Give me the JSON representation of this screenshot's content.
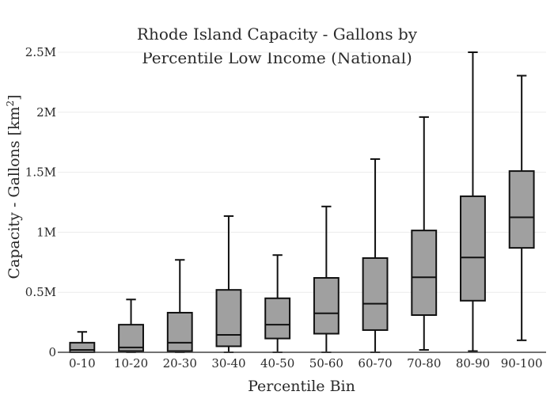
{
  "chart_data": {
    "type": "box",
    "title_lines": [
      "Rhode Island Capacity - Gallons by",
      "Percentile Low Income (National)"
    ],
    "xlabel": "Percentile Bin",
    "ylabel_main": "Capacity - Gallons  [km",
    "ylabel_sup": "2",
    "ylabel_end": "]",
    "ylim": [
      0,
      2500000
    ],
    "y_ticks": [
      {
        "value": 0,
        "label": "0"
      },
      {
        "value": 500000,
        "label": "0.5M"
      },
      {
        "value": 1000000,
        "label": "1M"
      },
      {
        "value": 1500000,
        "label": "1.5M"
      },
      {
        "value": 2000000,
        "label": "2M"
      },
      {
        "value": 2500000,
        "label": "2.5M"
      }
    ],
    "grid": true,
    "box_color": "#a0a0a0",
    "categories": [
      "0-10",
      "10-20",
      "20-30",
      "30-40",
      "40-50",
      "50-60",
      "60-70",
      "70-80",
      "80-90",
      "90-100"
    ],
    "boxes": [
      {
        "min": 0,
        "q1": 0,
        "median": 20000,
        "q3": 80000,
        "max": 170000
      },
      {
        "min": 0,
        "q1": 10000,
        "median": 40000,
        "q3": 230000,
        "max": 440000
      },
      {
        "min": 0,
        "q1": 10000,
        "median": 80000,
        "q3": 330000,
        "max": 770000
      },
      {
        "min": 0,
        "q1": 50000,
        "median": 145000,
        "q3": 520000,
        "max": 1135000
      },
      {
        "min": 0,
        "q1": 115000,
        "median": 230000,
        "q3": 450000,
        "max": 810000
      },
      {
        "min": 0,
        "q1": 155000,
        "median": 325000,
        "q3": 620000,
        "max": 1215000
      },
      {
        "min": 0,
        "q1": 185000,
        "median": 405000,
        "q3": 785000,
        "max": 1610000
      },
      {
        "min": 20000,
        "q1": 310000,
        "median": 625000,
        "q3": 1015000,
        "max": 1960000
      },
      {
        "min": 10000,
        "q1": 430000,
        "median": 790000,
        "q3": 1300000,
        "max": 2500000
      },
      {
        "min": 100000,
        "q1": 870000,
        "median": 1125000,
        "q3": 1510000,
        "max": 2305000
      }
    ]
  }
}
